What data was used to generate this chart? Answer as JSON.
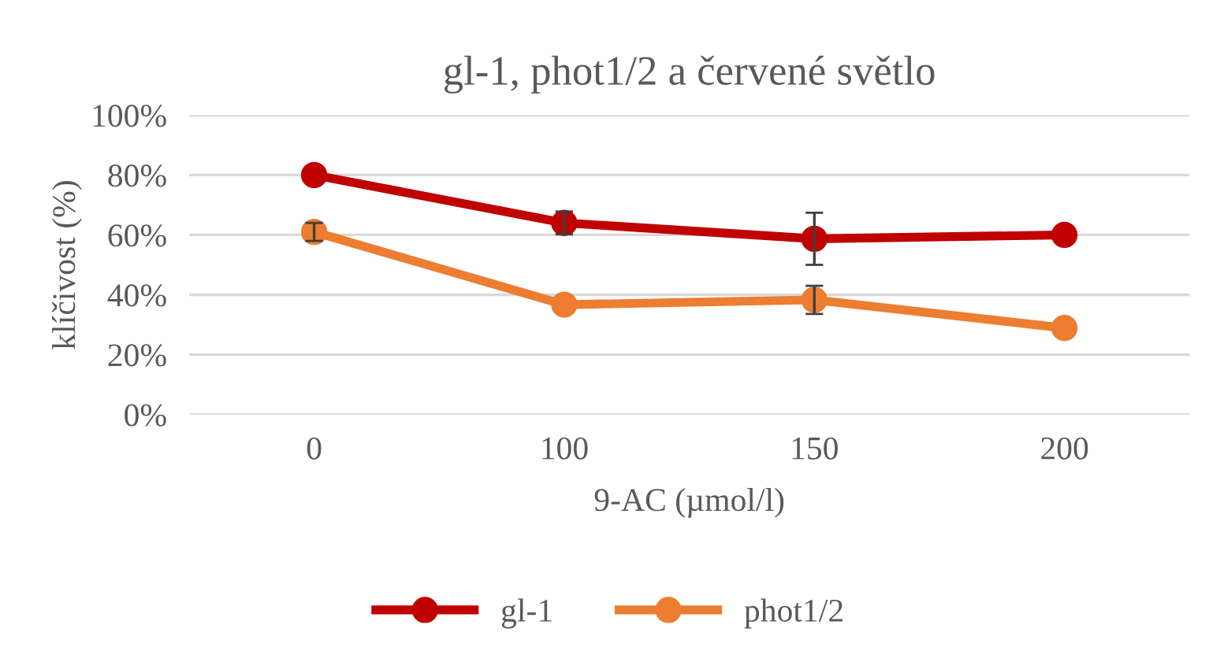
{
  "chart_data": {
    "type": "line",
    "title": "gl-1, phot1/2 a červené světlo",
    "xlabel": "9-AC (µmol/l)",
    "ylabel": "klíčivost (%)",
    "categories": [
      "0",
      "100",
      "150",
      "200"
    ],
    "series": [
      {
        "name": "gl-1",
        "color": "#c00000",
        "values": [
          80,
          64,
          58.7,
          60
        ],
        "errors": [
          null,
          3.8,
          8.7,
          null
        ]
      },
      {
        "name": "phot1/2",
        "color": "#ed7d31",
        "values": [
          61,
          36.7,
          38.3,
          28.9
        ],
        "errors": [
          3,
          null,
          4.7,
          null
        ]
      }
    ],
    "ylim": [
      0,
      100
    ],
    "yticks": [
      {
        "value": 0,
        "label": "0%"
      },
      {
        "value": 20,
        "label": "20%"
      },
      {
        "value": 40,
        "label": "40%"
      },
      {
        "value": 60,
        "label": "60%"
      },
      {
        "value": 80,
        "label": "80%"
      },
      {
        "value": 100,
        "label": "100%"
      }
    ],
    "grid": "y",
    "legend": "bottom",
    "marker": "circle",
    "line_style": "solid"
  }
}
